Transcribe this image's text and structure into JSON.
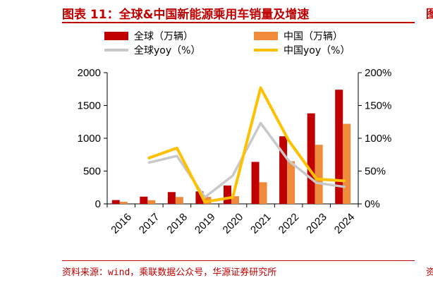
{
  "header": {
    "title": "图表 11：全球&中国新能源乘用车销量及增速"
  },
  "footer": {
    "source": "资料来源：wind，乘联数据公众号，华源证券研究所"
  },
  "colors": {
    "global_bar": "#c00000",
    "china_bar": "#ef8a3b",
    "global_yoy": "#c8c8c8",
    "china_yoy": "#ffc000",
    "brand": "#c00000"
  },
  "chart_data": {
    "type": "bar",
    "categories": [
      "2016",
      "2017",
      "2018",
      "2019",
      "2020",
      "2021",
      "2022",
      "2023",
      "2024"
    ],
    "series": [
      {
        "name": "全球（万辆）",
        "kind": "bar",
        "axis": "left",
        "values": [
          58,
          110,
          180,
          190,
          280,
          640,
          1030,
          1380,
          1740
        ]
      },
      {
        "name": "中国（万辆）",
        "kind": "bar",
        "axis": "left",
        "values": [
          32,
          56,
          105,
          107,
          117,
          330,
          650,
          900,
          1220
        ]
      }
    ],
    "line_series": [
      {
        "name": "全球yoy（%）",
        "kind": "line",
        "axis": "right",
        "values": [
          null,
          63,
          73,
          10,
          43,
          123,
          66,
          32,
          26
        ]
      },
      {
        "name": "中国yoy（%）",
        "kind": "line",
        "axis": "right",
        "values": [
          null,
          70,
          85,
          3,
          10,
          177,
          97,
          38,
          35
        ]
      }
    ],
    "y_left": {
      "min": 0,
      "max": 2000,
      "ticks": [
        "0",
        "500",
        "1000",
        "1500",
        "2000"
      ]
    },
    "y_right": {
      "min": 0,
      "max": 200,
      "ticks": [
        "0%",
        "50%",
        "100%",
        "150%",
        "200%"
      ]
    },
    "legend_position": "top",
    "grid": false
  }
}
